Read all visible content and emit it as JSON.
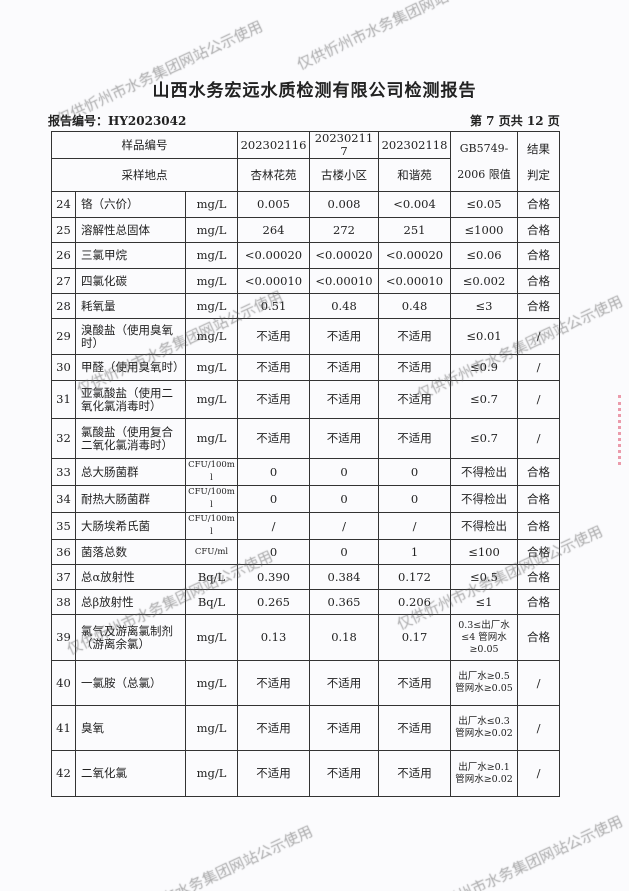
{
  "title": "山西水务宏远水质检测有限公司检测报告",
  "report_no": "报告编号：HY2023042",
  "page_info": "第 7 页共 12 页",
  "watermark": "仅供忻州市水务集团网站公示使用",
  "header": {
    "sample_no_label": "样品编号",
    "location_label": "采样地点",
    "samples": [
      "202302116",
      "202302117",
      "202302118"
    ],
    "locations": [
      "杏林花苑",
      "古楼小区",
      "和谐苑"
    ],
    "limit_label_1": "GB5749-",
    "limit_label_2": "2006 限值",
    "result_label_1": "结果",
    "result_label_2": "判定"
  },
  "rows": [
    {
      "no": "24",
      "name": "铬（六价）",
      "unit": "mg/L",
      "v": [
        "0.005",
        "0.008",
        "<0.004"
      ],
      "limit": "≤0.05",
      "result": "合格"
    },
    {
      "no": "25",
      "name": "溶解性总固体",
      "unit": "mg/L",
      "v": [
        "264",
        "272",
        "251"
      ],
      "limit": "≤1000",
      "result": "合格"
    },
    {
      "no": "26",
      "name": "三氯甲烷",
      "unit": "mg/L",
      "v": [
        "<0.00020",
        "<0.00020",
        "<0.00020"
      ],
      "limit": "≤0.06",
      "result": "合格"
    },
    {
      "no": "27",
      "name": "四氯化碳",
      "unit": "mg/L",
      "v": [
        "<0.00010",
        "<0.00010",
        "<0.00010"
      ],
      "limit": "≤0.002",
      "result": "合格"
    },
    {
      "no": "28",
      "name": "耗氧量",
      "unit": "mg/L",
      "v": [
        "0.51",
        "0.48",
        "0.48"
      ],
      "limit": "≤3",
      "result": "合格"
    },
    {
      "no": "29",
      "name": "溴酸盐（使用臭氧时）",
      "unit": "mg/L",
      "v": [
        "不适用",
        "不适用",
        "不适用"
      ],
      "limit": "≤0.01",
      "result": "/"
    },
    {
      "no": "30",
      "name": "甲醛（使用臭氧时）",
      "unit": "mg/L",
      "v": [
        "不适用",
        "不适用",
        "不适用"
      ],
      "limit": "≤0.9",
      "result": "/"
    },
    {
      "no": "31",
      "name": "亚氯酸盐（使用二氧化氯消毒时）",
      "unit": "mg/L",
      "v": [
        "不适用",
        "不适用",
        "不适用"
      ],
      "limit": "≤0.7",
      "result": "/"
    },
    {
      "no": "32",
      "name": "氯酸盐（使用复合二氧化氯消毒时）",
      "unit": "mg/L",
      "v": [
        "不适用",
        "不适用",
        "不适用"
      ],
      "limit": "≤0.7",
      "result": "/"
    },
    {
      "no": "33",
      "name": "总大肠菌群",
      "unit": "CFU/100ml",
      "v": [
        "0",
        "0",
        "0"
      ],
      "limit": "不得检出",
      "result": "合格"
    },
    {
      "no": "34",
      "name": "耐热大肠菌群",
      "unit": "CFU/100ml",
      "v": [
        "0",
        "0",
        "0"
      ],
      "limit": "不得检出",
      "result": "合格"
    },
    {
      "no": "35",
      "name": "大肠埃希氏菌",
      "unit": "CFU/100ml",
      "v": [
        "/",
        "/",
        "/"
      ],
      "limit": "不得检出",
      "result": "合格"
    },
    {
      "no": "36",
      "name": "菌落总数",
      "unit": "CFU/ml",
      "v": [
        "0",
        "0",
        "1"
      ],
      "limit": "≤100",
      "result": "合格"
    },
    {
      "no": "37",
      "name": "总α放射性",
      "unit": "Bq/L",
      "v": [
        "0.390",
        "0.384",
        "0.172"
      ],
      "limit": "≤0.5",
      "result": "合格"
    },
    {
      "no": "38",
      "name": "总β放射性",
      "unit": "Bq/L",
      "v": [
        "0.265",
        "0.365",
        "0.206"
      ],
      "limit": "≤1",
      "result": "合格"
    },
    {
      "no": "39",
      "name": "氯气及游离氯制剂（游离余氯）",
      "unit": "mg/L",
      "v": [
        "0.13",
        "0.18",
        "0.17"
      ],
      "limit": "0.3≤出厂水≤4 管网水≥0.05",
      "result": "合格"
    },
    {
      "no": "40",
      "name": "一氯胺（总氯）",
      "unit": "mg/L",
      "v": [
        "不适用",
        "不适用",
        "不适用"
      ],
      "limit": "出厂水≥0.5 管网水≥0.05",
      "result": "/"
    },
    {
      "no": "41",
      "name": "臭氧",
      "unit": "mg/L",
      "v": [
        "不适用",
        "不适用",
        "不适用"
      ],
      "limit": "出厂水≤0.3 管网水≥0.02",
      "result": "/"
    },
    {
      "no": "42",
      "name": "二氧化氯",
      "unit": "mg/L",
      "v": [
        "不适用",
        "不适用",
        "不适用"
      ],
      "limit": "出厂水≥0.1 管网水≥0.02",
      "result": "/"
    }
  ]
}
